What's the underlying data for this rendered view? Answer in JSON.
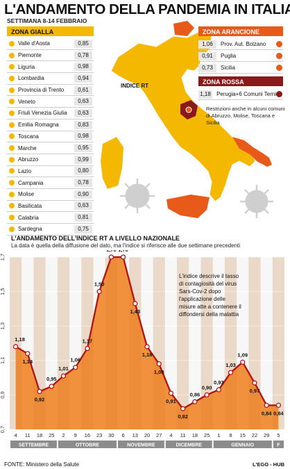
{
  "title": "L'ANDAMENTO DELLA PANDEMIA IN ITALIA",
  "week": "SETTIMANA 8-14 FEBBRAIO",
  "yellow_zone": {
    "label": "ZONA GIALLA",
    "color": "#f5b800",
    "regions": [
      {
        "name": "Valle d'Aosta",
        "value": "0,85"
      },
      {
        "name": "Piemonte",
        "value": "0,78"
      },
      {
        "name": "Liguria",
        "value": "0,98"
      },
      {
        "name": "Lombardia",
        "value": "0,94"
      },
      {
        "name": "Provincia di Trento",
        "value": "0,61"
      },
      {
        "name": "Veneto",
        "value": "0,63"
      },
      {
        "name": "Friuli Venezia Giulia",
        "value": "0,63"
      },
      {
        "name": "Emilia Romagna",
        "value": "0,83"
      },
      {
        "name": "Toscana",
        "value": "0,98"
      },
      {
        "name": "Marche",
        "value": "0,95"
      },
      {
        "name": "Abruzzo",
        "value": "0,99"
      },
      {
        "name": "Lazio",
        "value": "0,80"
      },
      {
        "name": "Campania",
        "value": "0,78"
      },
      {
        "name": "Molise",
        "value": "0,90"
      },
      {
        "name": "Basilicata",
        "value": "0,63"
      },
      {
        "name": "Calabria",
        "value": "0,81"
      },
      {
        "name": "Sardegna",
        "value": "0,75"
      }
    ]
  },
  "orange_zone": {
    "label": "ZONA ARANCIONE",
    "color": "#e85a1a",
    "regions": [
      {
        "name": "Prov. Aut. Bolzano",
        "value": "1,06"
      },
      {
        "name": "Puglia",
        "value": "0,91"
      },
      {
        "name": "Sicilia",
        "value": "0,73"
      }
    ]
  },
  "red_zone": {
    "label": "ZONA ROSSA",
    "color": "#8a1a1a",
    "regions": [
      {
        "name": "Perugia+6 Comuni Terni",
        "value": "1,18"
      }
    ]
  },
  "map_label": "INDICE RT",
  "restrictions_note": "Restrizioni anche in alcuni comuni di Abruzzo, Molise, Toscana e Sicilia",
  "section_title": "L'ANDAMENTO DELL'INDICE RT A LIVELLO NAZIONALE",
  "section_subtitle": "La data è quella della diffusione del dato, ma l'indice si riferisce alle due settimane precedenti",
  "chart_note": "L'indice descrive il tasso di contagiosità del virus Sars-Cov-2 dopo l'applicazione delle misure atte a contenere il diffondersi della malattia",
  "source": "FONTE: Ministero della Salute",
  "brand": "L'EGO - HUB",
  "chart_data": {
    "type": "area",
    "x": [
      "4",
      "11",
      "18",
      "25",
      "2",
      "9",
      "16",
      "23",
      "30",
      "6",
      "13",
      "20",
      "27",
      "4",
      "11",
      "18",
      "25",
      "1",
      "8",
      "15",
      "22",
      "29",
      "5"
    ],
    "values": [
      1.18,
      1.14,
      0.92,
      0.95,
      1.01,
      1.06,
      1.17,
      1.5,
      1.7,
      1.7,
      1.43,
      1.18,
      1.08,
      0.91,
      0.82,
      0.86,
      0.9,
      0.93,
      1.03,
      1.09,
      0.97,
      0.84,
      0.84
    ],
    "labels": [
      "1,18",
      "1,14",
      "0,92",
      "0,95",
      "1,01",
      "1,06",
      "1,17",
      "1,50",
      "1,70",
      "1,70",
      "1,43",
      "1,18",
      "1,08",
      "0,91",
      "0,82",
      "0,86",
      "0,90",
      "0,93",
      "1,03",
      "1,09",
      "0,97",
      "0,84",
      "0,84"
    ],
    "months": [
      {
        "label": "SETTEMBRE",
        "count": 4
      },
      {
        "label": "OTTOBRE",
        "count": 5
      },
      {
        "label": "NOVEMBRE",
        "count": 4
      },
      {
        "label": "DICEMBRE",
        "count": 4
      },
      {
        "label": "GENNAIO",
        "count": 5
      },
      {
        "label": "F",
        "count": 1
      }
    ],
    "yticks": [
      "0,7",
      "0,9",
      "1,1",
      "1,3",
      "1,5",
      "1,7"
    ],
    "ylim": [
      0.7,
      1.7
    ],
    "line_color": "#b01818",
    "fill_color": "#f0882e",
    "stripe_color": "#e07a22",
    "grid": true
  }
}
